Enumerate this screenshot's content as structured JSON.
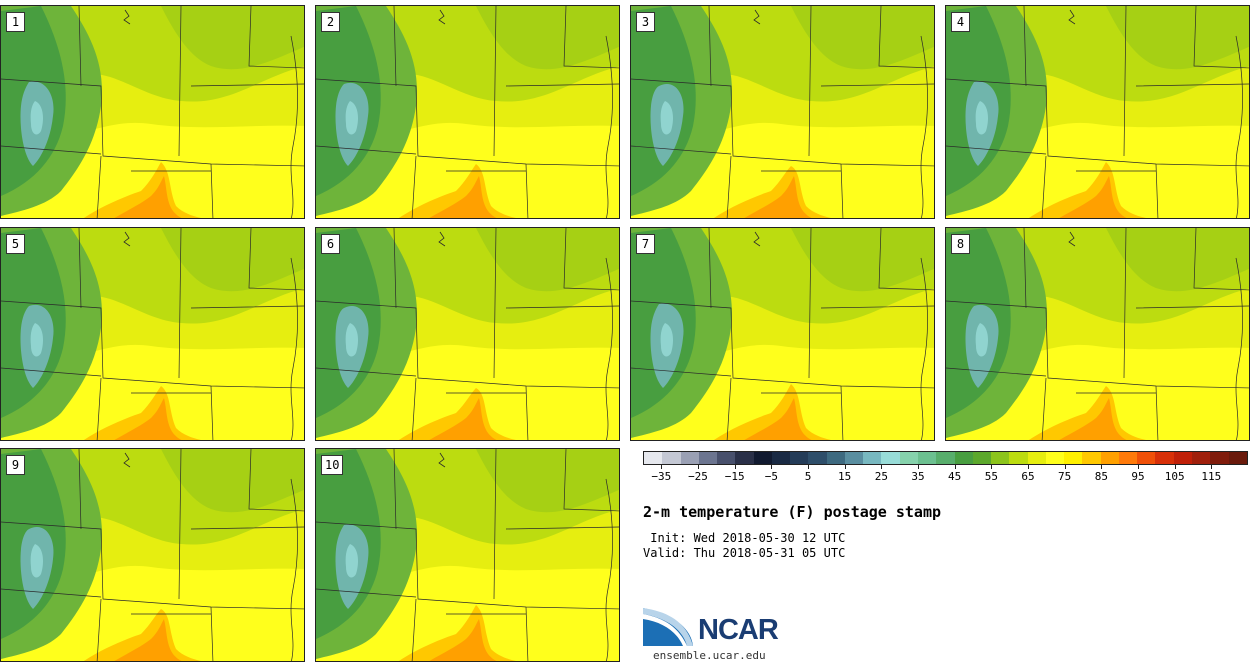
{
  "panels": [
    {
      "label": "1"
    },
    {
      "label": "2"
    },
    {
      "label": "3"
    },
    {
      "label": "4"
    },
    {
      "label": "5"
    },
    {
      "label": "6"
    },
    {
      "label": "7"
    },
    {
      "label": "8"
    },
    {
      "label": "9"
    },
    {
      "label": "10"
    }
  ],
  "colorbar": {
    "colors": [
      "#e6e8ee",
      "#c4c8d4",
      "#9aa0b4",
      "#6c7590",
      "#48506c",
      "#2a3048",
      "#111a30",
      "#1a2a44",
      "#243c58",
      "#2e4e6a",
      "#3e6a80",
      "#5a8ea0",
      "#78b8c0",
      "#98dcd8",
      "#86d2ac",
      "#6cc090",
      "#58ae6c",
      "#489e40",
      "#5ca82c",
      "#8cc41c",
      "#bcdc10",
      "#e6ee10",
      "#ffff1c",
      "#fff000",
      "#ffc800",
      "#ffa000",
      "#ff7a0a",
      "#f05008",
      "#d83008",
      "#c02008",
      "#a0200c",
      "#801c0c",
      "#6a1a0c"
    ],
    "tick_labels": [
      "−35",
      "−25",
      "−15",
      "−5",
      "5",
      "15",
      "25",
      "35",
      "45",
      "55",
      "65",
      "75",
      "85",
      "95",
      "105",
      "115"
    ]
  },
  "title": "2-m temperature (F) postage stamp",
  "init": " Init: Wed 2018-05-30 12 UTC",
  "valid": "Valid: Thu 2018-05-31 05 UTC",
  "logo": {
    "name": "NCAR",
    "url": "ensemble.ucar.edu"
  }
}
